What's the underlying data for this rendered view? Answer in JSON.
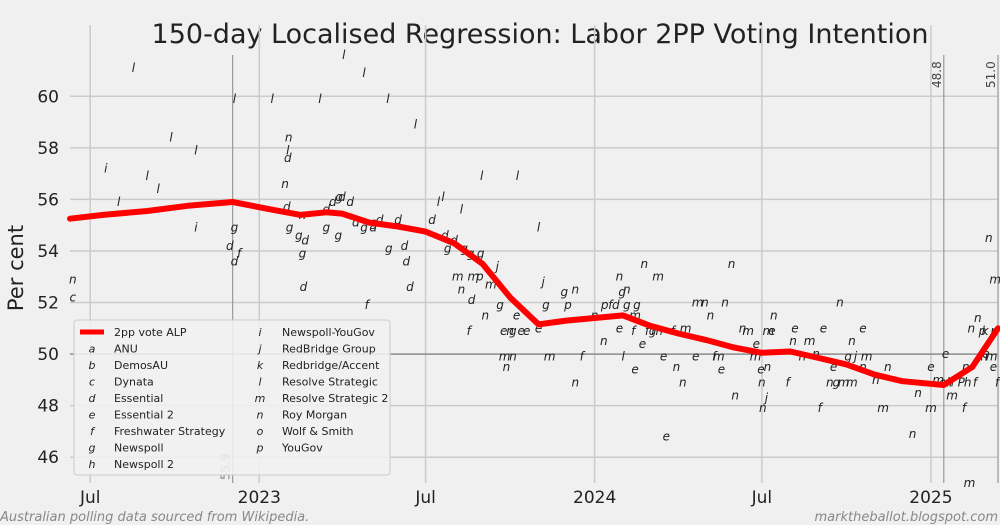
{
  "chart_data": {
    "type": "line",
    "title": "150-day Localised Regression: Labor 2PP Voting Intention",
    "ylabel": "Per cent",
    "xlabel": "",
    "ylim": [
      45,
      61.6
    ],
    "y_ticks": [
      46,
      48,
      50,
      52,
      54,
      56,
      58,
      60
    ],
    "x_range": [
      "2022-06-09",
      "2025-03-15"
    ],
    "x_ticks": [
      {
        "date": "2022-07-01",
        "label": "Jul"
      },
      {
        "date": "2023-01-01",
        "label": "2023"
      },
      {
        "date": "2023-07-01",
        "label": "Jul"
      },
      {
        "date": "2024-01-01",
        "label": "2024"
      },
      {
        "date": "2024-07-01",
        "label": "Jul"
      },
      {
        "date": "2025-01-01",
        "label": "2025"
      }
    ],
    "grid": true,
    "reference_line_y": 50,
    "vlines": [
      {
        "date": "2022-12-03",
        "label": "55.9"
      },
      {
        "date": "2025-01-15",
        "label": "48.8"
      },
      {
        "date": "2025-03-15",
        "label": "51.0"
      }
    ],
    "series": [
      {
        "name": "2pp vote ALP",
        "color": "#ff0000",
        "points": [
          [
            "2022-06-09",
            55.25
          ],
          [
            "2022-07-15",
            55.4
          ],
          [
            "2022-09-01",
            55.55
          ],
          [
            "2022-10-15",
            55.75
          ],
          [
            "2022-12-03",
            55.9
          ],
          [
            "2023-01-15",
            55.6
          ],
          [
            "2023-02-15",
            55.4
          ],
          [
            "2023-03-15",
            55.5
          ],
          [
            "2023-04-01",
            55.45
          ],
          [
            "2023-05-01",
            55.1
          ],
          [
            "2023-06-01",
            54.95
          ],
          [
            "2023-07-01",
            54.75
          ],
          [
            "2023-08-01",
            54.3
          ],
          [
            "2023-09-01",
            53.5
          ],
          [
            "2023-10-01",
            52.2
          ],
          [
            "2023-11-01",
            51.15
          ],
          [
            "2023-12-01",
            51.3
          ],
          [
            "2024-01-01",
            51.4
          ],
          [
            "2024-02-01",
            51.5
          ],
          [
            "2024-03-01",
            51.1
          ],
          [
            "2024-04-01",
            50.8
          ],
          [
            "2024-05-01",
            50.55
          ],
          [
            "2024-06-01",
            50.25
          ],
          [
            "2024-07-01",
            50.05
          ],
          [
            "2024-08-01",
            50.1
          ],
          [
            "2024-09-01",
            49.85
          ],
          [
            "2024-10-01",
            49.6
          ],
          [
            "2024-11-01",
            49.2
          ],
          [
            "2024-12-01",
            48.95
          ],
          [
            "2025-01-15",
            48.8
          ],
          [
            "2025-02-15",
            49.5
          ],
          [
            "2025-03-15",
            51.0
          ]
        ]
      }
    ],
    "polls": [
      [
        "n",
        "2022-06-12",
        52.9
      ],
      [
        "c",
        "2022-06-12",
        52.2
      ],
      [
        "i",
        "2022-07-18",
        57.2
      ],
      [
        "l",
        "2022-08-01",
        55.9
      ],
      [
        "l",
        "2022-08-17",
        61.1
      ],
      [
        "l",
        "2022-09-01",
        56.9
      ],
      [
        "l",
        "2022-09-13",
        56.4
      ],
      [
        "l",
        "2022-09-27",
        58.4
      ],
      [
        "l",
        "2022-10-24",
        57.9
      ],
      [
        "i",
        "2022-10-24",
        54.9
      ],
      [
        "g",
        "2022-12-05",
        54.9
      ],
      [
        "d",
        "2022-11-30",
        54.2
      ],
      [
        "d",
        "2022-12-05",
        53.6
      ],
      [
        "f",
        "2022-12-10",
        53.9
      ],
      [
        "l",
        "2022-12-05",
        59.9
      ],
      [
        "l",
        "2023-01-15",
        59.9
      ],
      [
        "n",
        "2023-01-29",
        56.6
      ],
      [
        "l",
        "2023-02-01",
        57.9
      ],
      [
        "d",
        "2023-02-01",
        57.6
      ],
      [
        "d",
        "2023-01-31",
        55.7
      ],
      [
        "n",
        "2023-02-02",
        58.4
      ],
      [
        "g",
        "2023-02-03",
        54.9
      ],
      [
        "d",
        "2023-02-20",
        54.4
      ],
      [
        "g",
        "2023-02-13",
        54.6
      ],
      [
        "n",
        "2023-02-17",
        55.4
      ],
      [
        "g",
        "2023-02-17",
        53.9
      ],
      [
        "d",
        "2023-02-18",
        52.6
      ],
      [
        "l",
        "2023-03-08",
        59.9
      ],
      [
        "d",
        "2023-03-15",
        55.6
      ],
      [
        "d",
        "2023-03-22",
        55.9
      ],
      [
        "g",
        "2023-03-15",
        54.9
      ],
      [
        "g",
        "2023-03-28",
        54.6
      ],
      [
        "d",
        "2023-04-01",
        56.1
      ],
      [
        "d",
        "2023-04-10",
        55.9
      ],
      [
        "g",
        "2023-03-29",
        56.1
      ],
      [
        "d",
        "2023-04-16",
        55.1
      ],
      [
        "l",
        "2023-04-03",
        61.6
      ],
      [
        "l",
        "2023-04-25",
        60.9
      ],
      [
        "f",
        "2023-04-28",
        51.9
      ],
      [
        "l",
        "2023-05-21",
        59.9
      ],
      [
        "g",
        "2023-04-25",
        54.9
      ],
      [
        "d",
        "2023-05-05",
        54.9
      ],
      [
        "g",
        "2023-05-06",
        55.1
      ],
      [
        "d",
        "2023-05-12",
        55.2
      ],
      [
        "d",
        "2023-06-01",
        55.2
      ],
      [
        "d",
        "2023-06-08",
        54.2
      ],
      [
        "g",
        "2023-05-22",
        54.1
      ],
      [
        "d",
        "2023-06-10",
        53.6
      ],
      [
        "d",
        "2023-06-14",
        52.6
      ],
      [
        "l",
        "2023-06-20",
        58.9
      ],
      [
        "d",
        "2023-07-08",
        55.2
      ],
      [
        "l",
        "2023-07-15",
        55.9
      ],
      [
        "d",
        "2023-07-22",
        54.6
      ],
      [
        "l",
        "2023-07-20",
        56.1
      ],
      [
        "g",
        "2023-07-25",
        54.1
      ],
      [
        "d",
        "2023-08-01",
        54.4
      ],
      [
        "l",
        "2023-08-09",
        55.6
      ],
      [
        "g",
        "2023-08-12",
        54.1
      ],
      [
        "m",
        "2023-08-05",
        53.0
      ],
      [
        "n",
        "2023-08-09",
        52.5
      ],
      [
        "d",
        "2023-08-20",
        52.1
      ],
      [
        "l",
        "2023-08-31",
        56.9
      ],
      [
        "g",
        "2023-08-19",
        53.9
      ],
      [
        "g",
        "2023-08-30",
        53.9
      ],
      [
        "m",
        "2023-08-22",
        53.0
      ],
      [
        "p",
        "2023-08-29",
        53.0
      ],
      [
        "n",
        "2023-09-04",
        51.5
      ],
      [
        "f",
        "2023-08-17",
        50.9
      ],
      [
        "m",
        "2023-09-10",
        52.7
      ],
      [
        "j",
        "2023-09-17",
        53.4
      ],
      [
        "g",
        "2023-09-20",
        51.9
      ],
      [
        "e",
        "2023-09-24",
        50.9
      ],
      [
        "l",
        "2023-10-09",
        56.9
      ],
      [
        "n",
        "2023-09-27",
        49.5
      ],
      [
        "m",
        "2023-09-25",
        49.9
      ],
      [
        "n",
        "2023-10-04",
        49.9
      ],
      [
        "g",
        "2023-10-04",
        50.9
      ],
      [
        "e",
        "2023-10-08",
        51.5
      ],
      [
        "e",
        "2023-10-13",
        50.9
      ],
      [
        "n",
        "2023-10-01",
        50.9
      ],
      [
        "e",
        "2023-10-19",
        50.9
      ],
      [
        "l",
        "2023-11-01",
        54.9
      ],
      [
        "j",
        "2023-11-06",
        52.8
      ],
      [
        "g",
        "2023-11-09",
        51.9
      ],
      [
        "m",
        "2023-11-13",
        49.9
      ],
      [
        "e",
        "2023-11-01",
        51.0
      ],
      [
        "n",
        "2023-12-11",
        48.9
      ],
      [
        "g",
        "2023-11-29",
        52.4
      ],
      [
        "p",
        "2023-12-03",
        51.9
      ],
      [
        "n",
        "2023-12-11",
        52.5
      ],
      [
        "f",
        "2023-12-18",
        49.9
      ],
      [
        "n",
        "2024-01-01",
        51.5
      ],
      [
        "p",
        "2024-01-12",
        51.9
      ],
      [
        "n",
        "2024-01-11",
        50.5
      ],
      [
        "f",
        "2024-01-18",
        51.9
      ],
      [
        "d",
        "2024-01-24",
        51.9
      ],
      [
        "e",
        "2024-01-28",
        51.0
      ],
      [
        "g",
        "2024-01-31",
        52.4
      ],
      [
        "l",
        "2024-02-01",
        49.9
      ],
      [
        "g",
        "2024-02-05",
        51.9
      ],
      [
        "n",
        "2024-01-28",
        53.0
      ],
      [
        "n",
        "2024-02-05",
        52.5
      ],
      [
        "f",
        "2024-02-12",
        50.9
      ],
      [
        "g",
        "2024-02-16",
        51.9
      ],
      [
        "e",
        "2024-02-14",
        49.4
      ],
      [
        "m",
        "2024-02-14",
        51.5
      ],
      [
        "n",
        "2024-02-24",
        53.5
      ],
      [
        "m",
        "2024-03-10",
        53.0
      ],
      [
        "e",
        "2024-02-22",
        50.4
      ],
      [
        "f",
        "2024-02-27",
        50.9
      ],
      [
        "g",
        "2024-03-04",
        50.9
      ],
      [
        "m",
        "2024-03-09",
        50.9
      ],
      [
        "e",
        "2024-03-16",
        49.9
      ],
      [
        "e",
        "2024-03-19",
        46.8
      ],
      [
        "n",
        "2024-03-30",
        49.5
      ],
      [
        "f",
        "2024-03-26",
        50.9
      ],
      [
        "m",
        "2024-04-09",
        51.0
      ],
      [
        "e",
        "2024-04-20",
        49.9
      ],
      [
        "m",
        "2024-04-22",
        52.0
      ],
      [
        "n",
        "2024-04-06",
        48.9
      ],
      [
        "n",
        "2024-04-30",
        52.0
      ],
      [
        "n",
        "2024-05-06",
        51.5
      ],
      [
        "f",
        "2024-05-10",
        49.9
      ],
      [
        "m",
        "2024-05-15",
        49.9
      ],
      [
        "e",
        "2024-05-18",
        49.4
      ],
      [
        "n",
        "2024-05-29",
        53.5
      ],
      [
        "n",
        "2024-05-22",
        52.0
      ],
      [
        "n",
        "2024-06-02",
        48.4
      ],
      [
        "n",
        "2024-06-10",
        51.0
      ],
      [
        "m",
        "2024-06-24",
        49.9
      ],
      [
        "m",
        "2024-06-16",
        50.9
      ],
      [
        "e",
        "2024-06-25",
        50.4
      ],
      [
        "e",
        "2024-06-30",
        49.4
      ],
      [
        "n",
        "2024-07-01",
        48.9
      ],
      [
        "n",
        "2024-07-02",
        47.9
      ],
      [
        "j",
        "2024-07-06",
        48.3
      ],
      [
        "m",
        "2024-07-08",
        50.9
      ],
      [
        "e",
        "2024-07-12",
        50.9
      ],
      [
        "n",
        "2024-07-07",
        49.5
      ],
      [
        "n",
        "2024-07-14",
        51.5
      ],
      [
        "f",
        "2024-07-29",
        48.9
      ],
      [
        "n",
        "2024-08-04",
        50.5
      ],
      [
        "e",
        "2024-08-06",
        51.0
      ],
      [
        "n",
        "2024-08-14",
        49.9
      ],
      [
        "m",
        "2024-08-22",
        50.5
      ],
      [
        "n",
        "2024-08-29",
        50.0
      ],
      [
        "f",
        "2024-09-02",
        47.9
      ],
      [
        "e",
        "2024-09-06",
        51.0
      ],
      [
        "e",
        "2024-09-17",
        49.5
      ],
      [
        "n",
        "2024-09-24",
        52.0
      ],
      [
        "n",
        "2024-09-13",
        48.9
      ],
      [
        "g",
        "2024-09-20",
        48.9
      ],
      [
        "m",
        "2024-09-28",
        48.9
      ],
      [
        "m",
        "2024-10-07",
        48.9
      ],
      [
        "g",
        "2024-10-03",
        49.9
      ],
      [
        "j",
        "2024-10-11",
        49.9
      ],
      [
        "n",
        "2024-10-07",
        50.5
      ],
      [
        "n",
        "2024-10-19",
        49.5
      ],
      [
        "e",
        "2024-10-19",
        51.0
      ],
      [
        "m",
        "2024-10-23",
        49.9
      ],
      [
        "n",
        "2024-11-02",
        49.0
      ],
      [
        "n",
        "2024-11-15",
        49.5
      ],
      [
        "m",
        "2024-11-10",
        47.9
      ],
      [
        "n",
        "2024-12-12",
        46.9
      ],
      [
        "n",
        "2024-12-18",
        48.5
      ],
      [
        "m",
        "2025-01-01",
        47.9
      ],
      [
        "e",
        "2025-01-01",
        49.5
      ],
      [
        "m",
        "2025-01-09",
        49.0
      ],
      [
        "e",
        "2025-01-14",
        48.9
      ],
      [
        "e",
        "2025-01-17",
        50.0
      ],
      [
        "n",
        "2025-01-20",
        48.9
      ],
      [
        "m",
        "2025-01-24",
        48.4
      ],
      [
        "h",
        "2025-01-22",
        48.9
      ],
      [
        "P",
        "2025-02-03",
        48.9
      ],
      [
        "h",
        "2025-02-10",
        48.9
      ],
      [
        "f",
        "2025-02-18",
        48.9
      ],
      [
        "f",
        "2025-02-06",
        47.9
      ],
      [
        "n",
        "2025-02-08",
        49.5
      ],
      [
        "n",
        "2025-02-14",
        51.0
      ],
      [
        "n",
        "2025-02-21",
        51.4
      ],
      [
        "p",
        "2025-02-26",
        50.9
      ],
      [
        "k",
        "2025-03-01",
        50.9
      ],
      [
        "h",
        "2025-02-28",
        49.9
      ],
      [
        "e",
        "2025-03-02",
        50.0
      ],
      [
        "n",
        "2025-03-05",
        54.5
      ],
      [
        "m",
        "2025-03-12",
        52.9
      ],
      [
        "m",
        "2025-03-08",
        49.9
      ],
      [
        "f",
        "2025-03-14",
        48.9
      ],
      [
        "m",
        "2025-02-12",
        45.0
      ],
      [
        "e",
        "2025-03-10",
        49.5
      ],
      [
        "n",
        "2025-03-11",
        50.9
      ]
    ],
    "legend_placement": "lower-left",
    "legend": [
      {
        "symbol": "",
        "label": "2pp vote ALP",
        "kind": "line"
      },
      {
        "symbol": "a",
        "label": "ANU"
      },
      {
        "symbol": "b",
        "label": "DemosAU"
      },
      {
        "symbol": "c",
        "label": "Dynata"
      },
      {
        "symbol": "d",
        "label": "Essential"
      },
      {
        "symbol": "e",
        "label": "Essential 2"
      },
      {
        "symbol": "f",
        "label": "Freshwater Strategy"
      },
      {
        "symbol": "g",
        "label": "Newspoll"
      },
      {
        "symbol": "h",
        "label": "Newspoll 2"
      },
      {
        "symbol": "i",
        "label": "Newspoll-YouGov"
      },
      {
        "symbol": "j",
        "label": "RedBridge Group"
      },
      {
        "symbol": "k",
        "label": "Redbridge/Accent"
      },
      {
        "symbol": "l",
        "label": "Resolve Strategic"
      },
      {
        "symbol": "m",
        "label": "Resolve Strategic 2"
      },
      {
        "symbol": "n",
        "label": "Roy Morgan"
      },
      {
        "symbol": "o",
        "label": "Wolf & Smith"
      },
      {
        "symbol": "p",
        "label": "YouGov"
      }
    ]
  },
  "footer": {
    "left": "Australian polling data sourced from Wikipedia.",
    "right": "marktheballot.blogspot.com"
  }
}
